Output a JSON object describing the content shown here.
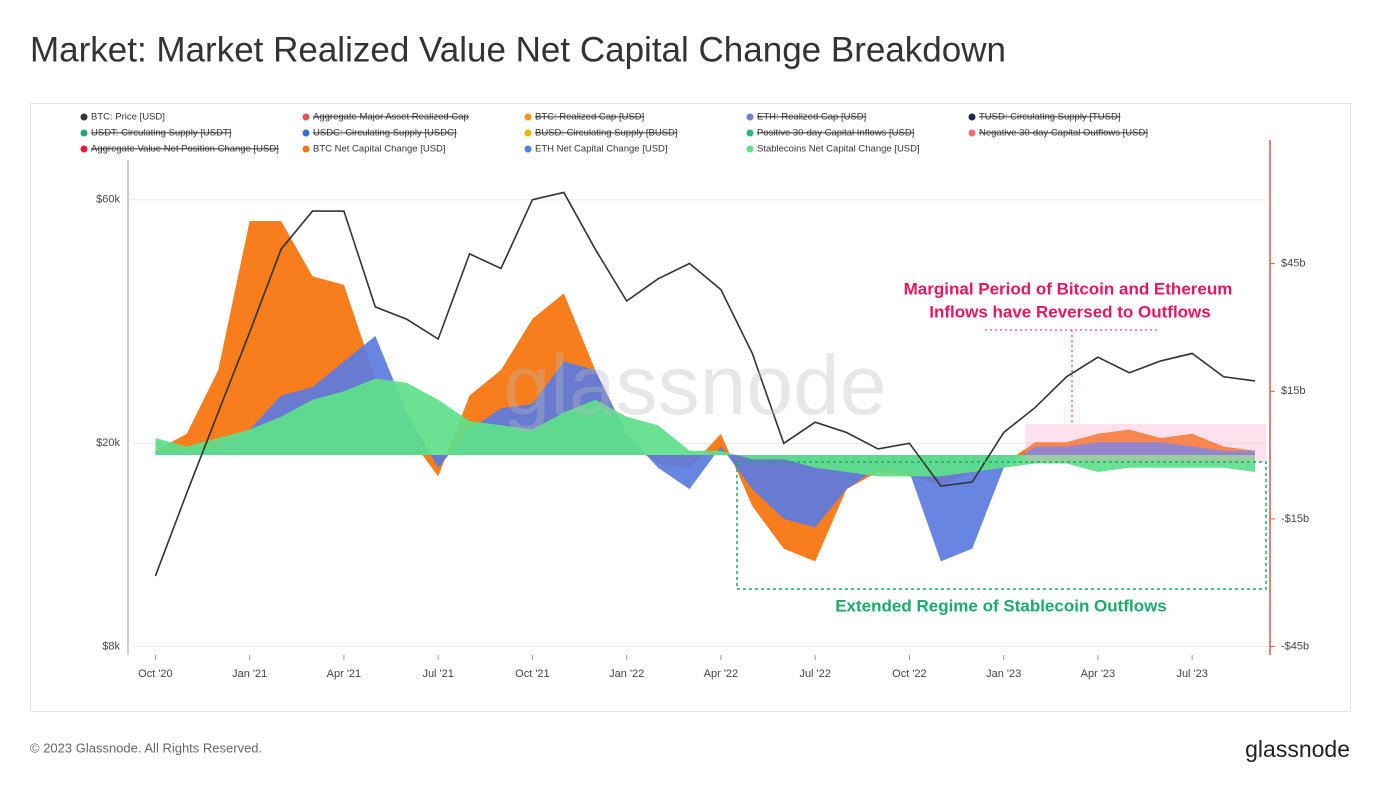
{
  "header": {
    "title": "Market: Market Realized Value Net Capital Change Breakdown"
  },
  "chart_data": {
    "type": "line",
    "watermark": "glassnode",
    "annotations": [
      "Marginal Period of Bitcoin and Ethereum",
      "Inflows have Reversed to Outflows",
      "Extended Regime of Stablecoin Outflows"
    ],
    "x": [
      "2020-10",
      "2020-11",
      "2020-12",
      "2021-01",
      "2021-02",
      "2021-03",
      "2021-04",
      "2021-05",
      "2021-06",
      "2021-07",
      "2021-08",
      "2021-09",
      "2021-10",
      "2021-11",
      "2021-12",
      "2022-01",
      "2022-02",
      "2022-03",
      "2022-04",
      "2022-05",
      "2022-06",
      "2022-07",
      "2022-08",
      "2022-09",
      "2022-10",
      "2022-11",
      "2022-12",
      "2023-01",
      "2023-02",
      "2023-03",
      "2023-04",
      "2023-05",
      "2023-06",
      "2023-07",
      "2023-08",
      "2023-09"
    ],
    "xlim": [
      "2020-09",
      "2023-09"
    ],
    "xticks": [
      {
        "value": "2020-10",
        "label": "Oct '20"
      },
      {
        "value": "2021-01",
        "label": "Jan '21"
      },
      {
        "value": "2021-04",
        "label": "Apr '21"
      },
      {
        "value": "2021-07",
        "label": "Jul '21"
      },
      {
        "value": "2021-10",
        "label": "Oct '21"
      },
      {
        "value": "2022-01",
        "label": "Jan '22"
      },
      {
        "value": "2022-04",
        "label": "Apr '22"
      },
      {
        "value": "2022-07",
        "label": "Jul '22"
      },
      {
        "value": "2022-10",
        "label": "Oct '22"
      },
      {
        "value": "2023-01",
        "label": "Jan '23"
      },
      {
        "value": "2023-04",
        "label": "Apr '23"
      },
      {
        "value": "2023-07",
        "label": "Jul '23"
      }
    ],
    "ylim": [
      7700,
      68600
    ],
    "log_scale": true,
    "yticks": [
      {
        "value": 8000,
        "label": "$8k"
      },
      {
        "value": 20000,
        "label": "$20k"
      },
      {
        "value": 60000,
        "label": "$60k"
      }
    ],
    "y2lim": [
      -47,
      67
    ],
    "y2ticks": [
      {
        "value": -45,
        "label": "-$45b"
      },
      {
        "value": -15,
        "label": "-$15b"
      },
      {
        "value": 15,
        "label": "$15b"
      },
      {
        "value": 45,
        "label": "$45b"
      }
    ],
    "grid": true,
    "series": [
      {
        "name": "BTC: Price [USD]",
        "color": "#333333",
        "type": "line",
        "values": [
          11000,
          16000,
          23000,
          33000,
          48000,
          57000,
          57000,
          37000,
          35000,
          32000,
          47000,
          44000,
          60000,
          62000,
          48000,
          38000,
          42000,
          45000,
          40000,
          30000,
          20000,
          22000,
          21000,
          19500,
          20000,
          16500,
          16800,
          21000,
          23500,
          27000,
          29500,
          27500,
          29000,
          30000,
          27000,
          26500
        ]
      },
      {
        "name": "Aggregate Major Asset Realized Cap",
        "color": "#e05555",
        "hidden": true
      },
      {
        "name": "BTC: Realized Cap [USD]",
        "color": "#f7931a",
        "hidden": true
      },
      {
        "name": "ETH: Realized Cap [USD]",
        "color": "#6f7fd6",
        "hidden": true
      },
      {
        "name": "TUSD: Circulating Supply [TUSD]",
        "color": "#1c2a5a",
        "hidden": true
      },
      {
        "name": "USDT: Circulating Supply [USDT]",
        "color": "#26a17b",
        "hidden": true
      },
      {
        "name": "USDC: Circulating Supply [USDC]",
        "color": "#2775ca",
        "hidden": true
      },
      {
        "name": "BUSD: Circulating Supply [BUSD]",
        "color": "#e6b800",
        "hidden": true
      },
      {
        "name": "Positive 30-day Capital Inflows [USD]",
        "color": "#2bb673",
        "hidden": true
      },
      {
        "name": "Negative 30-day Capital Outflows [USD]",
        "color": "#f07070",
        "hidden": true
      },
      {
        "name": "Aggregate Value Net Position Change [USD]",
        "color": "#e8173d",
        "hidden": true
      },
      {
        "name": "BTC Net Capital Change [USD]",
        "color": "#f7720a",
        "type": "area",
        "axis": "y2",
        "values": [
          1,
          5,
          20,
          55,
          55,
          42,
          40,
          18,
          5,
          -5,
          14,
          20,
          32,
          38,
          20,
          3,
          -2,
          -3,
          5,
          -12,
          -22,
          -25,
          -8,
          -4,
          -5,
          -7,
          -4,
          -2,
          3,
          3,
          5,
          6,
          4,
          5,
          2,
          1
        ]
      },
      {
        "name": "ETH Net Capital Change [USD]",
        "color": "#5b7be0",
        "type": "area",
        "axis": "y2",
        "values": [
          1,
          1,
          2,
          6,
          14,
          16,
          22,
          28,
          10,
          -3,
          6,
          11,
          12,
          22,
          20,
          5,
          -3,
          -8,
          2,
          -8,
          -15,
          -17,
          -8,
          -3,
          -4,
          -25,
          -22,
          -3,
          2,
          2,
          3,
          3,
          3,
          2,
          1,
          1
        ]
      },
      {
        "name": "Stablecoins Net Capital Change [USD]",
        "color": "#5ee08a",
        "type": "area",
        "axis": "y2",
        "values": [
          4,
          2,
          4,
          6,
          9,
          13,
          15,
          18,
          17,
          13,
          8,
          7,
          6,
          10,
          13,
          9,
          7,
          1,
          1,
          -1,
          -1,
          -3,
          -4,
          -5,
          -5,
          -5,
          -4,
          -3,
          -2,
          -2,
          -4,
          -3,
          -3,
          -3,
          -3,
          -4
        ]
      }
    ]
  },
  "footer": {
    "copyright": "© 2023 Glassnode. All Rights Reserved.",
    "logo": "glassnode"
  }
}
